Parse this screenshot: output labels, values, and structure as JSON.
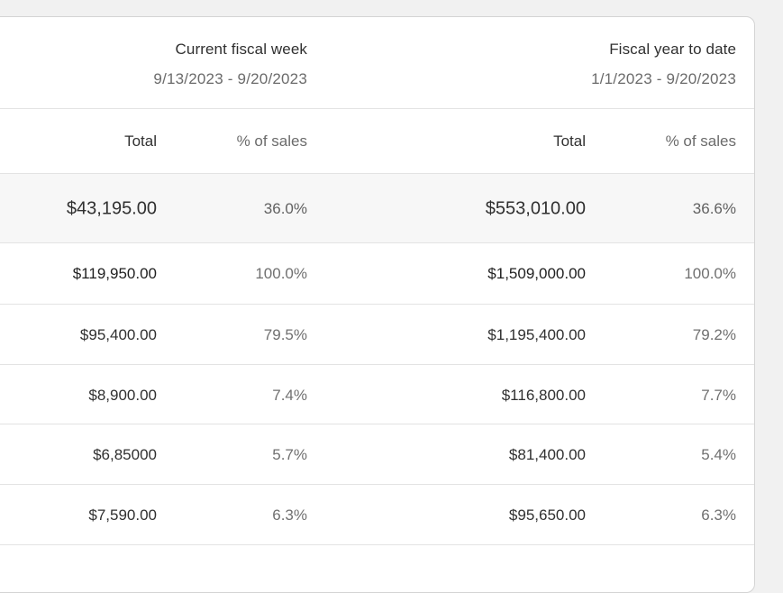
{
  "periods": [
    {
      "title": "Current fiscal week",
      "range": "9/13/2023 - 9/20/2023"
    },
    {
      "title": "Fiscal year to date",
      "range": "1/1/2023 - 9/20/2023"
    }
  ],
  "columns": {
    "week_total": "Total",
    "week_pct": "% of sales",
    "ytd_total": "Total",
    "ytd_pct": "% of sales"
  },
  "rows": [
    {
      "week_total": "$43,195.00",
      "week_pct": "36.0%",
      "ytd_total": "$553,010.00",
      "ytd_pct": "36.6%"
    },
    {
      "week_total": "$119,950.00",
      "week_pct": "100.0%",
      "ytd_total": "$1,509,000.00",
      "ytd_pct": "100.0%"
    },
    {
      "week_total": "$95,400.00",
      "week_pct": "79.5%",
      "ytd_total": "$1,195,400.00",
      "ytd_pct": "79.2%"
    },
    {
      "week_total": "$8,900.00",
      "week_pct": "7.4%",
      "ytd_total": "$116,800.00",
      "ytd_pct": "7.7%"
    },
    {
      "week_total": "$6,85000",
      "week_pct": "5.7%",
      "ytd_total": "$81,400.00",
      "ytd_pct": "5.4%"
    },
    {
      "week_total": "$7,590.00",
      "week_pct": "6.3%",
      "ytd_total": "$95,650.00",
      "ytd_pct": "6.3%"
    }
  ]
}
